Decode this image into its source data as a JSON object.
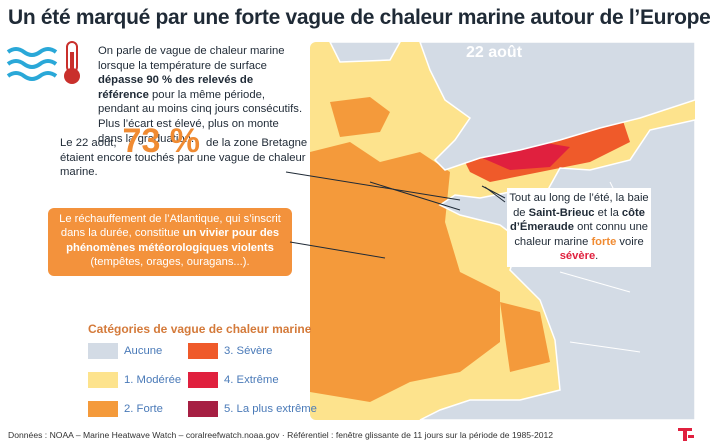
{
  "header": {
    "title": "Un été marqué par une forte vague de chaleur marine autour de l’Europe"
  },
  "intro": {
    "parts": [
      "On parle de vague de chaleur marine lorsque la température de surface ",
      "dépasse 90 % des relevés de référence",
      " pour la même période, pendant au moins cinq jours consécutifs. Plus l’écart est élevé, plus on monte dans la graduation."
    ]
  },
  "stat": {
    "before": "Le 22 août,",
    "figure": "73 %",
    "after": "de la zone Bretagne étaient encore touchés par une vague de chaleur marine."
  },
  "callout": {
    "parts": [
      "Le réchauffement de l’Atlantique, qui s’inscrit dans la durée, constitue ",
      "un vivier pour des phénomènes météorologiques violents",
      " (tempêtes, orages, ouragans...)."
    ]
  },
  "map": {
    "date": "22 août",
    "note": {
      "parts": [
        "Tout au long de l’été, la baie de ",
        "Saint-Brieuc",
        " et la ",
        "côte d’Émeraude",
        " ont connu une chaleur marine ",
        "forte",
        " voire ",
        "sévère",
        "."
      ]
    }
  },
  "legend": {
    "title": "Catégories de vague de chaleur marine",
    "items": [
      {
        "label": "Aucune",
        "color": "#d3dbe5"
      },
      {
        "label": "1. Modérée",
        "color": "#fde38d"
      },
      {
        "label": "2. Forte",
        "color": "#f49a3b"
      },
      {
        "label": "3. Sévère",
        "color": "#ef5a2a"
      },
      {
        "label": "4. Extrême",
        "color": "#e0203e"
      },
      {
        "label": "5. La plus extrême",
        "color": "#a61f43"
      }
    ]
  },
  "footer": {
    "source": "Données : NOAA – Marine Heatwave Watch – coralreefwatch.noaa.gov · Référentiel : fenêtre glissante de 11 jours sur la période de 1985-2012"
  }
}
